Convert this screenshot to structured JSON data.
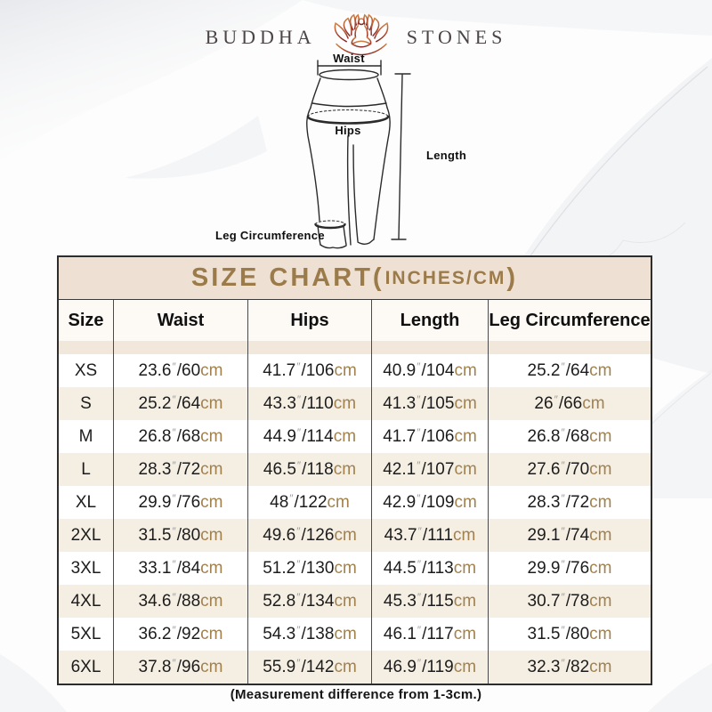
{
  "brand": {
    "name_left": "BUDDHA",
    "name_right": "STONES",
    "icon": "lotus-meditation-icon"
  },
  "diagram": {
    "waist_label": "Waist",
    "hips_label": "Hips",
    "length_label": "Length",
    "leg_circumference_label": "Leg Circumference"
  },
  "size_chart": {
    "title_main": "SIZE CHART(",
    "title_inner": "INCHES/CM",
    "title_close": ")",
    "units": {
      "inch_mark": "″",
      "cm_suffix": "cm"
    },
    "columns": [
      "Size",
      "Waist",
      "Hips",
      "Length",
      "Leg Circumference"
    ],
    "rows": [
      {
        "size": "XS",
        "waist": {
          "in": "23.6",
          "cm": "60"
        },
        "hips": {
          "in": "41.7",
          "cm": "106"
        },
        "length": {
          "in": "40.9",
          "cm": "104"
        },
        "leg": {
          "in": "25.2",
          "cm": "64"
        }
      },
      {
        "size": "S",
        "waist": {
          "in": "25.2",
          "cm": "64"
        },
        "hips": {
          "in": "43.3",
          "cm": "110"
        },
        "length": {
          "in": "41.3",
          "cm": "105"
        },
        "leg": {
          "in": "26",
          "cm": "66"
        }
      },
      {
        "size": "M",
        "waist": {
          "in": "26.8",
          "cm": "68"
        },
        "hips": {
          "in": "44.9",
          "cm": "114"
        },
        "length": {
          "in": "41.7",
          "cm": "106"
        },
        "leg": {
          "in": "26.8",
          "cm": "68"
        }
      },
      {
        "size": "L",
        "waist": {
          "in": "28.3",
          "cm": "72"
        },
        "hips": {
          "in": "46.5",
          "cm": "118"
        },
        "length": {
          "in": "42.1",
          "cm": "107"
        },
        "leg": {
          "in": "27.6",
          "cm": "70"
        }
      },
      {
        "size": "XL",
        "waist": {
          "in": "29.9",
          "cm": "76"
        },
        "hips": {
          "in": "48",
          "cm": "122"
        },
        "length": {
          "in": "42.9",
          "cm": "109"
        },
        "leg": {
          "in": "28.3",
          "cm": "72"
        }
      },
      {
        "size": "2XL",
        "waist": {
          "in": "31.5",
          "cm": "80"
        },
        "hips": {
          "in": "49.6",
          "cm": "126"
        },
        "length": {
          "in": "43.7",
          "cm": "111"
        },
        "leg": {
          "in": "29.1",
          "cm": "74"
        }
      },
      {
        "size": "3XL",
        "waist": {
          "in": "33.1",
          "cm": "84"
        },
        "hips": {
          "in": "51.2",
          "cm": "130"
        },
        "length": {
          "in": "44.5",
          "cm": "113"
        },
        "leg": {
          "in": "29.9",
          "cm": "76"
        }
      },
      {
        "size": "4XL",
        "waist": {
          "in": "34.6",
          "cm": "88"
        },
        "hips": {
          "in": "52.8",
          "cm": "134"
        },
        "length": {
          "in": "45.3",
          "cm": "115"
        },
        "leg": {
          "in": "30.7",
          "cm": "78"
        }
      },
      {
        "size": "5XL",
        "waist": {
          "in": "36.2",
          "cm": "92"
        },
        "hips": {
          "in": "54.3",
          "cm": "138"
        },
        "length": {
          "in": "46.1",
          "cm": "117"
        },
        "leg": {
          "in": "31.5",
          "cm": "80"
        }
      },
      {
        "size": "6XL",
        "waist": {
          "in": "37.8",
          "cm": "96"
        },
        "hips": {
          "in": "55.9",
          "cm": "142"
        },
        "length": {
          "in": "46.9",
          "cm": "119"
        },
        "leg": {
          "in": "32.3",
          "cm": "82"
        }
      }
    ]
  },
  "footnote": "(Measurement difference from 1-3cm.)",
  "colors": {
    "title_text": "#9c7b4a",
    "title_band_bg": "#eee0d2",
    "row_alt_bg": "#f5eee3",
    "cm_text": "#a1824f",
    "table_border": "#2d2d2d",
    "logo_gradient_top": "#d08040",
    "logo_gradient_bottom": "#7e2a28"
  }
}
